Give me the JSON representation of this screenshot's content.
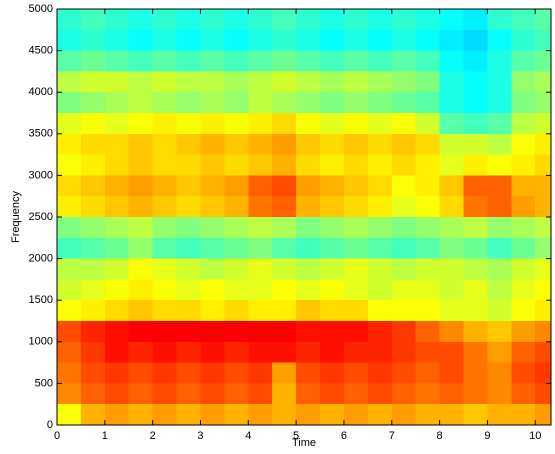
{
  "chart_data": {
    "type": "heatmap",
    "xlabel": "Time",
    "ylabel": "Frequency",
    "x": [
      0,
      0.5,
      1,
      1.5,
      2,
      2.5,
      3,
      3.5,
      4,
      4.5,
      5,
      5.5,
      6,
      6.5,
      7,
      7.5,
      8,
      8.5,
      9,
      9.5,
      10
    ],
    "y": [
      0,
      250,
      500,
      750,
      1000,
      1250,
      1500,
      1750,
      2000,
      2250,
      2500,
      2750,
      3000,
      3250,
      3500,
      3750,
      4000,
      4250,
      4500,
      4750
    ],
    "xlim": [
      0,
      10.33
    ],
    "ylim": [
      0,
      5000
    ],
    "xticks": [
      0,
      1,
      2,
      3,
      4,
      5,
      6,
      7,
      8,
      9,
      10
    ],
    "yticks": [
      0,
      500,
      1000,
      1500,
      2000,
      2500,
      3000,
      3500,
      4000,
      4500,
      5000
    ],
    "values": [
      [
        0.62,
        0.7,
        0.72,
        0.7,
        0.72,
        0.7,
        0.72,
        0.7,
        0.72,
        0.7,
        0.72,
        0.7,
        0.72,
        0.7,
        0.72,
        0.7,
        0.7,
        0.68,
        0.7,
        0.7,
        0.72
      ],
      [
        0.74,
        0.78,
        0.8,
        0.78,
        0.8,
        0.78,
        0.8,
        0.78,
        0.8,
        0.7,
        0.78,
        0.8,
        0.78,
        0.8,
        0.78,
        0.76,
        0.78,
        0.76,
        0.74,
        0.78,
        0.8
      ],
      [
        0.76,
        0.8,
        0.82,
        0.8,
        0.82,
        0.8,
        0.82,
        0.8,
        0.82,
        0.72,
        0.8,
        0.82,
        0.8,
        0.82,
        0.8,
        0.78,
        0.8,
        0.76,
        0.74,
        0.8,
        0.82
      ],
      [
        0.78,
        0.82,
        0.86,
        0.84,
        0.86,
        0.84,
        0.86,
        0.84,
        0.86,
        0.86,
        0.84,
        0.86,
        0.84,
        0.84,
        0.82,
        0.8,
        0.8,
        0.76,
        0.72,
        0.78,
        0.8
      ],
      [
        0.8,
        0.84,
        0.86,
        0.88,
        0.88,
        0.88,
        0.88,
        0.88,
        0.88,
        0.88,
        0.86,
        0.86,
        0.86,
        0.84,
        0.82,
        0.78,
        0.74,
        0.7,
        0.68,
        0.72,
        0.74
      ],
      [
        0.62,
        0.64,
        0.66,
        0.68,
        0.66,
        0.66,
        0.64,
        0.66,
        0.64,
        0.64,
        0.68,
        0.66,
        0.66,
        0.62,
        0.62,
        0.62,
        0.6,
        0.6,
        0.58,
        0.62,
        0.64
      ],
      [
        0.58,
        0.6,
        0.62,
        0.64,
        0.62,
        0.6,
        0.62,
        0.6,
        0.6,
        0.62,
        0.6,
        0.62,
        0.6,
        0.58,
        0.6,
        0.6,
        0.58,
        0.6,
        0.56,
        0.6,
        0.62
      ],
      [
        0.56,
        0.56,
        0.58,
        0.62,
        0.6,
        0.58,
        0.56,
        0.58,
        0.6,
        0.58,
        0.56,
        0.58,
        0.6,
        0.58,
        0.56,
        0.58,
        0.58,
        0.56,
        0.54,
        0.58,
        0.6
      ],
      [
        0.44,
        0.46,
        0.48,
        0.52,
        0.46,
        0.44,
        0.46,
        0.48,
        0.5,
        0.46,
        0.44,
        0.46,
        0.48,
        0.46,
        0.44,
        0.46,
        0.5,
        0.48,
        0.44,
        0.48,
        0.52
      ],
      [
        0.5,
        0.52,
        0.54,
        0.56,
        0.52,
        0.5,
        0.52,
        0.54,
        0.56,
        0.54,
        0.5,
        0.52,
        0.54,
        0.52,
        0.5,
        0.52,
        0.54,
        0.56,
        0.52,
        0.54,
        0.56
      ],
      [
        0.64,
        0.66,
        0.68,
        0.7,
        0.68,
        0.66,
        0.68,
        0.7,
        0.76,
        0.78,
        0.7,
        0.68,
        0.66,
        0.64,
        0.6,
        0.62,
        0.66,
        0.76,
        0.78,
        0.72,
        0.7
      ],
      [
        0.66,
        0.68,
        0.7,
        0.72,
        0.7,
        0.68,
        0.7,
        0.72,
        0.78,
        0.8,
        0.72,
        0.7,
        0.68,
        0.66,
        0.62,
        0.64,
        0.68,
        0.78,
        0.78,
        0.7,
        0.7
      ],
      [
        0.62,
        0.64,
        0.66,
        0.68,
        0.66,
        0.66,
        0.68,
        0.66,
        0.68,
        0.7,
        0.66,
        0.64,
        0.66,
        0.64,
        0.66,
        0.64,
        0.6,
        0.64,
        0.62,
        0.64,
        0.66
      ],
      [
        0.64,
        0.66,
        0.66,
        0.68,
        0.66,
        0.68,
        0.7,
        0.68,
        0.7,
        0.72,
        0.68,
        0.66,
        0.68,
        0.66,
        0.68,
        0.66,
        0.58,
        0.58,
        0.56,
        0.62,
        0.64
      ],
      [
        0.6,
        0.62,
        0.6,
        0.62,
        0.64,
        0.62,
        0.64,
        0.62,
        0.64,
        0.66,
        0.62,
        0.6,
        0.62,
        0.6,
        0.62,
        0.58,
        0.46,
        0.44,
        0.46,
        0.56,
        0.58
      ],
      [
        0.5,
        0.52,
        0.54,
        0.56,
        0.54,
        0.52,
        0.54,
        0.52,
        0.56,
        0.54,
        0.52,
        0.5,
        0.52,
        0.5,
        0.48,
        0.46,
        0.4,
        0.38,
        0.4,
        0.5,
        0.52
      ],
      [
        0.56,
        0.58,
        0.58,
        0.56,
        0.58,
        0.56,
        0.56,
        0.54,
        0.56,
        0.58,
        0.56,
        0.54,
        0.56,
        0.54,
        0.52,
        0.5,
        0.4,
        0.38,
        0.4,
        0.52,
        0.54
      ],
      [
        0.46,
        0.48,
        0.46,
        0.44,
        0.46,
        0.44,
        0.46,
        0.44,
        0.46,
        0.48,
        0.46,
        0.44,
        0.46,
        0.44,
        0.46,
        0.44,
        0.38,
        0.36,
        0.4,
        0.46,
        0.48
      ],
      [
        0.4,
        0.42,
        0.4,
        0.38,
        0.4,
        0.38,
        0.4,
        0.38,
        0.4,
        0.42,
        0.4,
        0.38,
        0.4,
        0.38,
        0.4,
        0.38,
        0.36,
        0.34,
        0.38,
        0.42,
        0.44
      ],
      [
        0.42,
        0.44,
        0.42,
        0.4,
        0.42,
        0.4,
        0.42,
        0.4,
        0.42,
        0.44,
        0.42,
        0.4,
        0.42,
        0.4,
        0.42,
        0.4,
        0.38,
        0.36,
        0.42,
        0.44,
        0.46
      ]
    ]
  }
}
